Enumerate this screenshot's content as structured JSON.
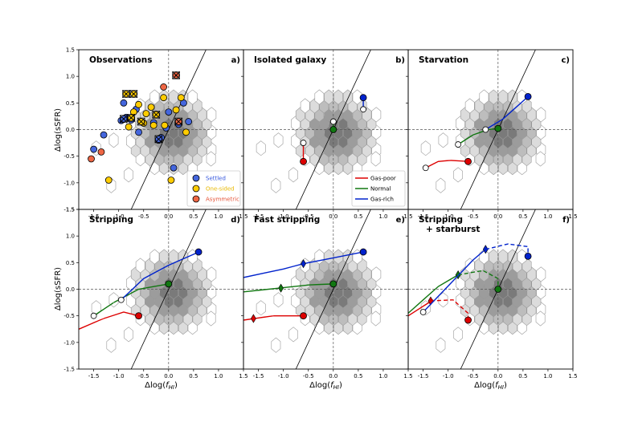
{
  "figure": {
    "ylabel": "Δlog(sSFR)",
    "xlabel_base": "Δlog(",
    "xlabel_f": "f",
    "xlabel_sub": "HI",
    "xlabel_close": ")"
  },
  "chart_data": {
    "type": "scatter",
    "layout": "2x3 grid of panels",
    "xlim": [
      -1.8,
      1.5
    ],
    "ylim": [
      -1.5,
      1.5
    ],
    "xticks": [
      -1.5,
      -1.0,
      -0.5,
      0.0,
      0.5,
      1.0,
      1.5
    ],
    "yticks": [
      -1.5,
      -1.0,
      -0.5,
      0.0,
      0.5,
      1.0,
      1.5
    ],
    "xtick_labels": [
      "-1.5",
      "-1.0",
      "-0.5",
      "0.0",
      "0.5",
      "1.0",
      "1.5"
    ],
    "ytick_labels": [
      "-1.5",
      "-1.0",
      "-0.5",
      "0.0",
      "0.5",
      "1.0",
      "1.5"
    ],
    "reference_line": {
      "description": "diagonal line through origin",
      "slope": 2.0
    },
    "zero_lines": {
      "x": 0,
      "y": 0,
      "style": "dashed"
    },
    "colors": {
      "poor": "#dd0000",
      "normal": "#117711",
      "rich": "#0022cc",
      "settled": "#4466dd",
      "onesided": "#ffcc00",
      "asym": "#ee6644",
      "yellow_text": "#e8b800",
      "asym_text": "#e5553a",
      "settled_text": "#3355dd"
    },
    "panels": [
      {
        "title": "Observations",
        "label": "a)",
        "legend": [
          {
            "label": "Settled",
            "color": "settled"
          },
          {
            "label": "One-sided",
            "color": "onesided"
          },
          {
            "label": "Asymmetric",
            "color": "asym"
          }
        ],
        "points": [
          {
            "x": -1.3,
            "y": -0.1,
            "c": "settled"
          },
          {
            "x": -1.5,
            "y": -0.37,
            "c": "settled"
          },
          {
            "x": -0.95,
            "y": 0.17,
            "c": "settled"
          },
          {
            "x": -0.85,
            "y": 0.23,
            "c": "settled"
          },
          {
            "x": -0.75,
            "y": 0.18,
            "c": "settled"
          },
          {
            "x": -0.6,
            "y": -0.05,
            "c": "settled"
          },
          {
            "x": -0.3,
            "y": 0.13,
            "c": "settled"
          },
          {
            "x": -0.05,
            "y": 0.03,
            "c": "settled"
          },
          {
            "x": -0.2,
            "y": -0.2,
            "c": "settled"
          },
          {
            "x": 0.1,
            "y": -0.72,
            "c": "settled"
          },
          {
            "x": 0.3,
            "y": 0.5,
            "c": "settled"
          },
          {
            "x": 0.4,
            "y": 0.15,
            "c": "settled"
          },
          {
            "x": 0.0,
            "y": 0.33,
            "c": "settled"
          },
          {
            "x": -0.9,
            "y": 0.5,
            "c": "settled"
          },
          {
            "x": -0.65,
            "y": 0.38,
            "c": "settled"
          },
          {
            "x": -0.15,
            "y": -0.15,
            "c": "settled"
          },
          {
            "x": 0.2,
            "y": 0.1,
            "c": "settled"
          },
          {
            "x": -1.55,
            "y": -0.55,
            "c": "asym"
          },
          {
            "x": -1.35,
            "y": -0.42,
            "c": "asym"
          },
          {
            "x": -0.1,
            "y": 0.8,
            "c": "asym"
          },
          {
            "x": 0.15,
            "y": 1.02,
            "c": "asym",
            "cross": true
          },
          {
            "x": 0.2,
            "y": 0.15,
            "c": "asym",
            "cross": true
          },
          {
            "x": -1.2,
            "y": -0.95,
            "c": "onesided"
          },
          {
            "x": 0.05,
            "y": -0.95,
            "c": "onesided"
          },
          {
            "x": -0.85,
            "y": 0.67,
            "c": "onesided",
            "cross": true
          },
          {
            "x": -0.7,
            "y": 0.67,
            "c": "onesided",
            "cross": true
          },
          {
            "x": -0.7,
            "y": 0.33,
            "c": "onesided"
          },
          {
            "x": -0.6,
            "y": 0.47,
            "c": "onesided"
          },
          {
            "x": -0.45,
            "y": 0.3,
            "c": "onesided"
          },
          {
            "x": -0.35,
            "y": 0.42,
            "c": "onesided"
          },
          {
            "x": -0.25,
            "y": 0.28,
            "c": "onesided",
            "cross": true
          },
          {
            "x": -0.1,
            "y": 0.6,
            "c": "onesided"
          },
          {
            "x": 0.25,
            "y": 0.6,
            "c": "onesided"
          },
          {
            "x": 0.15,
            "y": 0.37,
            "c": "onesided"
          },
          {
            "x": -0.3,
            "y": 0.08,
            "c": "onesided"
          },
          {
            "x": -0.5,
            "y": 0.12,
            "c": "onesided"
          },
          {
            "x": -0.08,
            "y": 0.08,
            "c": "onesided"
          },
          {
            "x": 0.35,
            "y": -0.05,
            "c": "onesided"
          },
          {
            "x": -0.8,
            "y": 0.05,
            "c": "onesided"
          },
          {
            "x": -0.55,
            "y": 0.15,
            "c": "onesided",
            "cross": true
          },
          {
            "x": -0.9,
            "y": 0.2,
            "c": "settled",
            "cross": true
          },
          {
            "x": -0.2,
            "y": -0.18,
            "c": "settled",
            "cross": true
          },
          {
            "x": -0.75,
            "y": 0.22,
            "c": "onesided",
            "cross": true
          }
        ]
      },
      {
        "title": "Isolated galaxy",
        "label": "b)",
        "legend": [
          {
            "label": "Gas-poor",
            "color": "poor"
          },
          {
            "label": "Normal",
            "color": "normal"
          },
          {
            "label": "Gas-rich",
            "color": "rich"
          }
        ],
        "tracks": [
          {
            "c": "poor",
            "pts": [
              [
                -0.6,
                -0.6
              ],
              [
                -0.6,
                -0.25
              ]
            ],
            "open": [
              -0.6,
              -0.25
            ],
            "filled": [
              -0.6,
              -0.6
            ]
          },
          {
            "c": "normal",
            "pts": [
              [
                0.0,
                0.0
              ],
              [
                0.0,
                0.15
              ]
            ],
            "open": [
              0.0,
              0.15
            ],
            "filled": [
              0.0,
              0.0
            ]
          },
          {
            "c": "rich",
            "pts": [
              [
                0.6,
                0.6
              ],
              [
                0.6,
                0.38
              ]
            ],
            "open": [
              0.6,
              0.38
            ],
            "filled": [
              0.6,
              0.6
            ]
          }
        ]
      },
      {
        "title": "Starvation",
        "label": "c)",
        "tracks": [
          {
            "c": "poor",
            "pts": [
              [
                -1.45,
                -0.72
              ],
              [
                -1.2,
                -0.6
              ],
              [
                -0.95,
                -0.58
              ],
              [
                -0.6,
                -0.6
              ]
            ],
            "open": [
              -1.45,
              -0.72
            ],
            "filled": [
              -0.6,
              -0.6
            ]
          },
          {
            "c": "normal",
            "pts": [
              [
                -0.8,
                -0.28
              ],
              [
                -0.5,
                -0.1
              ],
              [
                -0.2,
                0.0
              ],
              [
                0.0,
                0.02
              ]
            ],
            "open": [
              -0.8,
              -0.28
            ],
            "filled": [
              0.0,
              0.02
            ]
          },
          {
            "c": "rich",
            "pts": [
              [
                -0.25,
                0.0
              ],
              [
                0.1,
                0.2
              ],
              [
                0.6,
                0.62
              ]
            ],
            "open": [
              -0.25,
              0.0
            ],
            "filled": [
              0.6,
              0.62
            ]
          }
        ]
      },
      {
        "title": "Stripping",
        "label": "d)",
        "tracks": [
          {
            "c": "poor",
            "pts": [
              [
                -1.8,
                -0.75
              ],
              [
                -1.3,
                -0.55
              ],
              [
                -0.9,
                -0.43
              ],
              [
                -0.6,
                -0.5
              ]
            ],
            "filled": [
              -0.6,
              -0.5
            ]
          },
          {
            "c": "normal",
            "pts": [
              [
                -1.5,
                -0.5
              ],
              [
                -1.1,
                -0.25
              ],
              [
                -0.6,
                0.0
              ],
              [
                0.0,
                0.1
              ]
            ],
            "open": [
              -1.5,
              -0.5
            ],
            "filled": [
              0.0,
              0.1
            ]
          },
          {
            "c": "rich",
            "pts": [
              [
                -0.95,
                -0.2
              ],
              [
                -0.5,
                0.2
              ],
              [
                0.0,
                0.45
              ],
              [
                0.6,
                0.7
              ]
            ],
            "open": [
              -0.95,
              -0.2
            ],
            "filled": [
              0.6,
              0.7
            ]
          }
        ]
      },
      {
        "title": "Fast stripping",
        "label": "e)",
        "tracks": [
          {
            "c": "poor",
            "pts": [
              [
                -1.8,
                -0.58
              ],
              [
                -1.2,
                -0.5
              ],
              [
                -0.6,
                -0.5
              ]
            ],
            "filled": [
              -0.6,
              -0.5
            ],
            "diamond": [
              -1.6,
              -0.55
            ]
          },
          {
            "c": "normal",
            "pts": [
              [
                -1.8,
                -0.05
              ],
              [
                -1.1,
                0.02
              ],
              [
                -0.5,
                0.08
              ],
              [
                0.0,
                0.1
              ]
            ],
            "filled": [
              0.0,
              0.1
            ],
            "diamond": [
              -1.05,
              0.02
            ]
          },
          {
            "c": "rich",
            "pts": [
              [
                -1.8,
                0.22
              ],
              [
                -1.0,
                0.38
              ],
              [
                -0.6,
                0.48
              ],
              [
                0.6,
                0.7
              ]
            ],
            "filled": [
              0.6,
              0.7
            ],
            "diamond": [
              -0.6,
              0.48
            ]
          }
        ]
      },
      {
        "title": "Stripping",
        "title2": "+ starburst",
        "label": "f)",
        "tracks": [
          {
            "c": "poor",
            "pts": [
              [
                -1.8,
                -0.5
              ],
              [
                -1.3,
                -0.2
              ]
            ],
            "diamond": [
              -1.35,
              -0.22
            ]
          },
          {
            "c": "poor",
            "dashed": true,
            "pts": [
              [
                -1.35,
                -0.22
              ],
              [
                -0.9,
                -0.2
              ],
              [
                -0.6,
                -0.45
              ],
              [
                -0.6,
                -0.58
              ]
            ],
            "filled": [
              -0.6,
              -0.58
            ]
          },
          {
            "c": "normal",
            "pts": [
              [
                -1.8,
                -0.45
              ],
              [
                -1.2,
                0.05
              ],
              [
                -0.8,
                0.27
              ]
            ],
            "diamond": [
              -0.8,
              0.27
            ]
          },
          {
            "c": "normal",
            "dashed": true,
            "pts": [
              [
                -0.8,
                0.27
              ],
              [
                -0.3,
                0.35
              ],
              [
                0.0,
                0.2
              ],
              [
                0.0,
                0.0
              ]
            ],
            "filled": [
              0.0,
              0.0
            ]
          },
          {
            "c": "rich",
            "pts": [
              [
                -1.5,
                -0.43
              ],
              [
                -0.5,
                0.55
              ],
              [
                -0.25,
                0.75
              ]
            ],
            "open": [
              -1.5,
              -0.43
            ],
            "diamond": [
              -0.25,
              0.75
            ]
          },
          {
            "c": "rich",
            "dashed": true,
            "pts": [
              [
                -0.25,
                0.75
              ],
              [
                0.2,
                0.85
              ],
              [
                0.6,
                0.8
              ],
              [
                0.6,
                0.62
              ]
            ],
            "filled": [
              0.6,
              0.62
            ]
          }
        ]
      }
    ]
  }
}
